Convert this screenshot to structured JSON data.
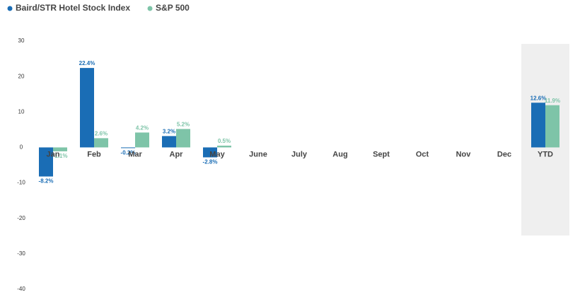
{
  "chart_data": {
    "type": "bar",
    "categories": [
      "Jan",
      "Feb",
      "Mar",
      "Apr",
      "May",
      "June",
      "July",
      "Aug",
      "Sept",
      "Oct",
      "Nov",
      "Dec",
      "YTD"
    ],
    "series": [
      {
        "name": "Baird/STR Hotel Stock Index",
        "color": "#1a6db5",
        "values": [
          -8.2,
          22.4,
          -0.2,
          3.2,
          -2.8,
          null,
          null,
          null,
          null,
          null,
          null,
          null,
          12.6
        ],
        "value_labels": [
          "-8.2%",
          "22.4%",
          "-0.2%",
          "3.2%",
          "-2.8%",
          null,
          null,
          null,
          null,
          null,
          null,
          null,
          "12.6%"
        ]
      },
      {
        "name": "S&P 500",
        "color": "#7ec4a8",
        "values": [
          -1.1,
          2.6,
          4.2,
          5.2,
          0.5,
          null,
          null,
          null,
          null,
          null,
          null,
          null,
          11.9
        ],
        "value_labels": [
          "-1.1%",
          "2.6%",
          "4.2%",
          "5.2%",
          "0.5%",
          null,
          null,
          null,
          null,
          null,
          null,
          null,
          "11.9%"
        ]
      }
    ],
    "ylim": [
      -40,
      30
    ],
    "yticks": [
      -40,
      -30,
      -20,
      -10,
      0,
      10,
      20,
      30
    ],
    "grid": false,
    "legend": "top-left"
  }
}
